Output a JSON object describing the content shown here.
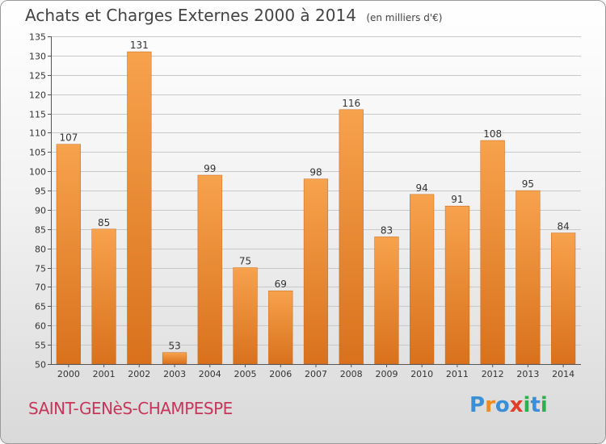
{
  "chart_data": {
    "type": "bar",
    "title": "Achats et Charges Externes 2000 à 2014",
    "subtitle": "(en milliers d'€)",
    "categories": [
      "2000",
      "2001",
      "2002",
      "2003",
      "2004",
      "2005",
      "2006",
      "2007",
      "2008",
      "2009",
      "2010",
      "2011",
      "2012",
      "2013",
      "2014"
    ],
    "values": [
      107,
      85,
      131,
      53,
      99,
      75,
      69,
      98,
      116,
      83,
      94,
      91,
      108,
      95,
      84
    ],
    "ylim": [
      50,
      135
    ],
    "yticks": [
      50,
      55,
      60,
      65,
      70,
      75,
      80,
      85,
      90,
      95,
      100,
      105,
      110,
      115,
      120,
      125,
      130,
      135
    ],
    "xlabel": "",
    "ylabel": "",
    "grid": true,
    "bar_color": "#f0913a"
  },
  "footer": {
    "commune": "SAINT-GENèS-CHAMPESPE",
    "logo": [
      "P",
      "r",
      "o",
      "x",
      "i",
      "t",
      "i"
    ]
  },
  "logo_colors": [
    "#3a8fd6",
    "#f08a1c",
    "#3a8fd6",
    "#e23c2a",
    "#2bb24c",
    "#3a8fd6",
    "#2bb24c"
  ]
}
